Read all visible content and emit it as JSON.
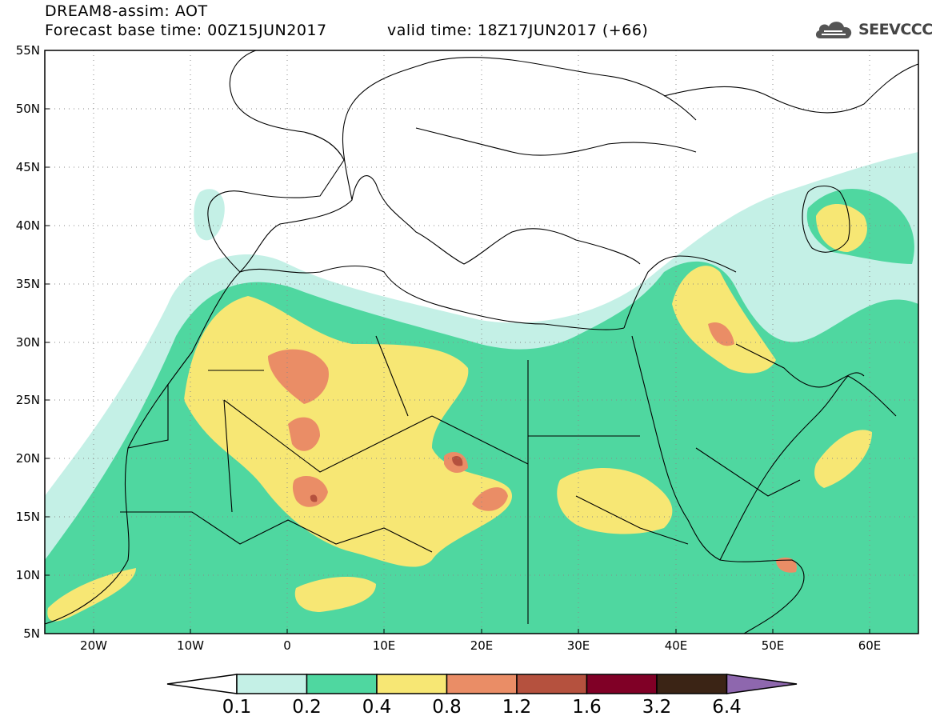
{
  "header": {
    "title_line1": "DREAM8-assim: AOT",
    "title_line2": "Forecast base time: 00Z15JUN2017",
    "valid_time": "valid time: 18Z17JUN2017 (+66)"
  },
  "logo": {
    "text": "SEEVCCC",
    "icon": "cloud-logo-icon"
  },
  "map": {
    "variable": "AOT",
    "lon_range": [
      -25,
      65
    ],
    "lat_range": [
      5,
      55
    ],
    "lat_ticks": [
      "55N",
      "50N",
      "45N",
      "40N",
      "35N",
      "30N",
      "25N",
      "20N",
      "15N",
      "10N",
      "5N"
    ],
    "lon_ticks": [
      "20W",
      "10W",
      "0",
      "10E",
      "20E",
      "30E",
      "40E",
      "50E",
      "60E"
    ],
    "gridlines": "dotted"
  },
  "colorbar": {
    "levels": [
      "0.1",
      "0.2",
      "0.4",
      "0.8",
      "1.2",
      "1.6",
      "3.2",
      "6.4"
    ],
    "colors": [
      "#c4f0e6",
      "#4fd7a0",
      "#f7e774",
      "#ea8d66",
      "#b5513e",
      "#800026",
      "#3b2415",
      "#8e67ae"
    ],
    "under_color": "#ffffff"
  }
}
